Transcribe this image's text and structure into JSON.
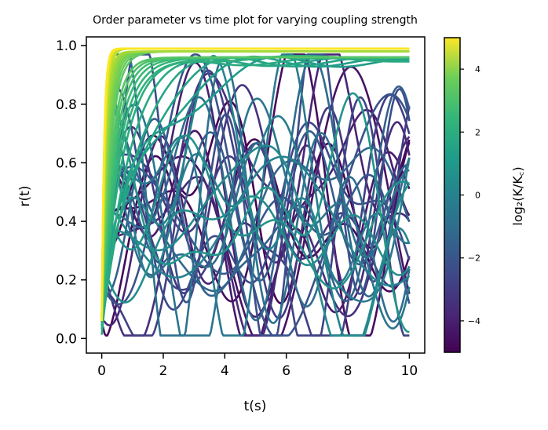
{
  "chart_data": {
    "type": "line",
    "title": "Order parameter vs time plot for varying coupling strength",
    "xlabel": "t(s)",
    "ylabel": "r(t)",
    "xlim": [
      -0.5,
      10.5
    ],
    "ylim": [
      -0.05,
      1.03
    ],
    "xticks": [
      0,
      2,
      4,
      6,
      8,
      10
    ],
    "xtick_labels": [
      "0",
      "2",
      "4",
      "6",
      "8",
      "10"
    ],
    "yticks": [
      0.0,
      0.2,
      0.4,
      0.6,
      0.8,
      1.0
    ],
    "ytick_labels": [
      "0.0",
      "0.2",
      "0.4",
      "0.6",
      "0.8",
      "1.0"
    ],
    "grid": false,
    "legend": "none",
    "colormap": "viridis",
    "colorbar": {
      "label": "log₂(K/K꜀)",
      "range": [
        -5,
        5
      ],
      "ticks": [
        -4,
        -2,
        0,
        2,
        4
      ],
      "tick_labels": [
        "−4",
        "−2",
        "0",
        "2",
        "4"
      ]
    },
    "series_note_counts": {
      "n_curves": 60
    },
    "curve_color_colors": [
      "#440154",
      "#3b528b",
      "#21918c",
      "#5ec962",
      "#fde725"
    ],
    "converged_levels": [
      0.99,
      0.98,
      0.96,
      0.95,
      0.93,
      0.92
    ]
  }
}
